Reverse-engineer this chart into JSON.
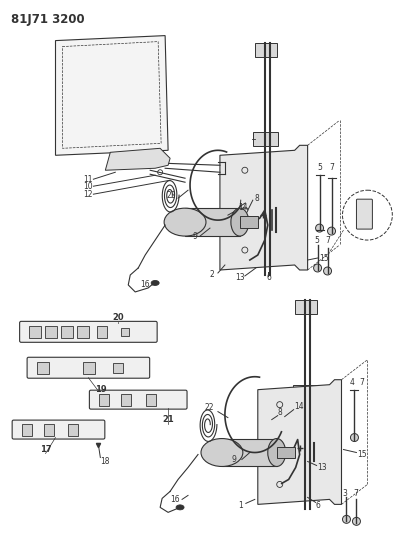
{
  "title": "81J71 3200",
  "bg_color": "#ffffff",
  "line_color": "#333333",
  "title_fontsize": 8.5,
  "title_fontweight": "bold",
  "figsize": [
    3.98,
    5.33
  ],
  "dpi": 100
}
